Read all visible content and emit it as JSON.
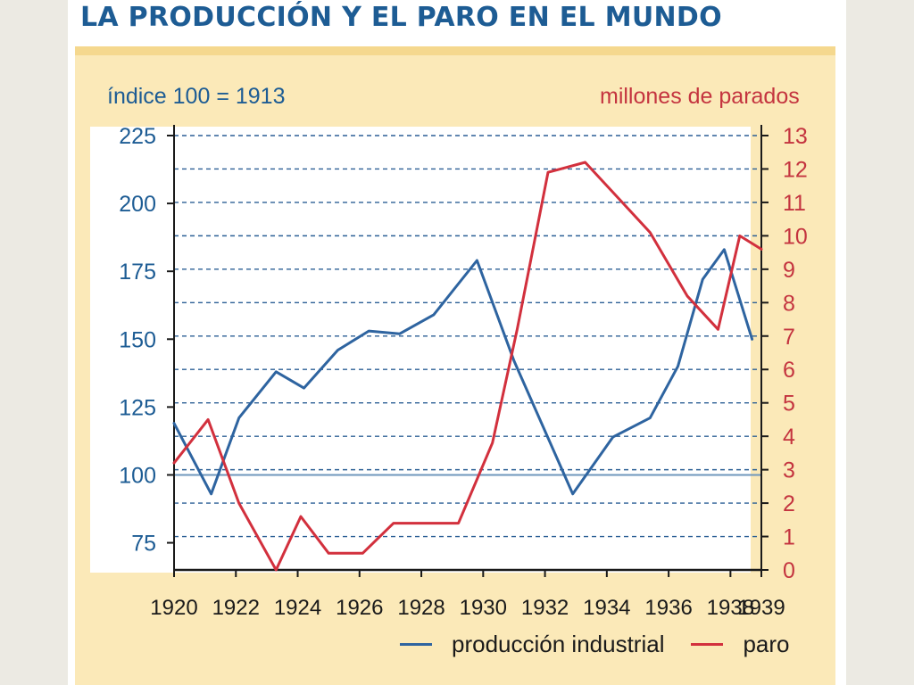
{
  "title": "LA PRODUCCIÓN Y EL PARO EN EL MUNDO",
  "colors": {
    "produccion": "#2e64a0",
    "paro": "#d2303d",
    "left_axis": "#1d5c94",
    "right_axis": "#c4343f"
  },
  "chart_data": {
    "type": "line",
    "title": "LA PRODUCCIÓN Y EL PARO EN EL MUNDO",
    "y_left_label": "índice 100 = 1913",
    "y_right_label": "millones de parados",
    "x_ticks": [
      "1920",
      "1922",
      "1924",
      "1926",
      "1928",
      "1930",
      "1932",
      "1934",
      "1936",
      "1938",
      "1939"
    ],
    "x_range": [
      1920,
      1939
    ],
    "y_left_range": [
      65,
      225
    ],
    "y_left_ticks": [
      "225",
      "200",
      "175",
      "150",
      "125",
      "100",
      "75"
    ],
    "y_right_range": [
      0,
      13
    ],
    "y_right_ticks": [
      "13",
      "12",
      "11",
      "10",
      "9",
      "8",
      "7",
      "6",
      "5",
      "4",
      "3",
      "2",
      "1",
      "0"
    ],
    "grid": "horizontal dashed",
    "legend_position": "bottom-right",
    "reference_line_left": 100,
    "series": [
      {
        "name": "producción industrial",
        "axis": "left",
        "x": [
          1920,
          1921.2,
          1922.1,
          1923.3,
          1924.2,
          1925.3,
          1926.3,
          1927.3,
          1928.4,
          1929.8,
          1931.0,
          1932.9,
          1934.2,
          1935.4,
          1936.3,
          1937.1,
          1937.8,
          1938.7
        ],
        "y": [
          119,
          93,
          121,
          138,
          132,
          146,
          153,
          152,
          159,
          179,
          142,
          93,
          114,
          121,
          140,
          172,
          183,
          150
        ]
      },
      {
        "name": "paro",
        "axis": "right",
        "x": [
          1920,
          1921.1,
          1922.1,
          1923.3,
          1924.1,
          1925.0,
          1926.1,
          1927.1,
          1928.1,
          1929.2,
          1930.3,
          1931.1,
          1932.1,
          1933.3,
          1934.3,
          1935.4,
          1936.6,
          1937.6,
          1938.3,
          1939
        ],
        "y": [
          3.2,
          4.5,
          2.0,
          0,
          1.6,
          0.5,
          0.5,
          1.4,
          1.4,
          1.4,
          3.8,
          7.2,
          11.9,
          12.2,
          11.2,
          10.1,
          8.2,
          7.2,
          10.0,
          9.6
        ]
      }
    ]
  }
}
